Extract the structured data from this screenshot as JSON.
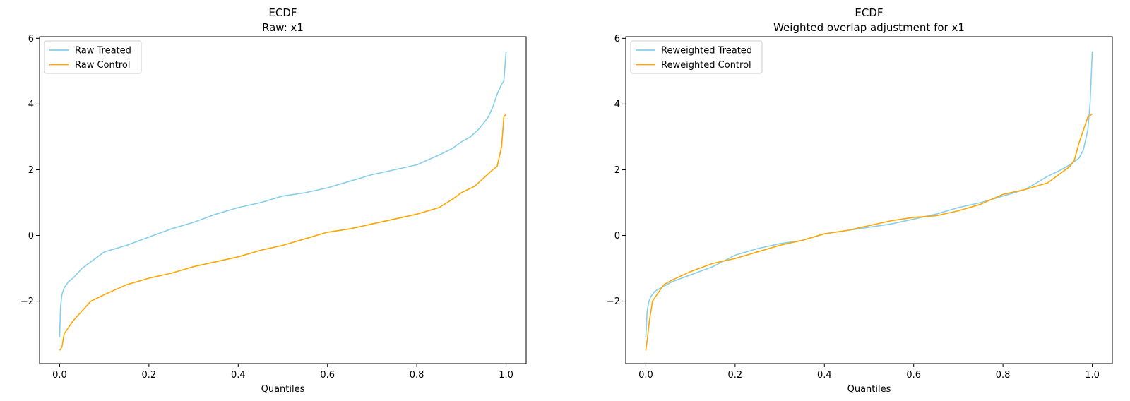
{
  "colors": {
    "treated": "#87ceeb",
    "control": "#ffa500"
  },
  "chart_data": [
    {
      "type": "line",
      "title": "ECDF",
      "subtitle": "Raw: x1",
      "xlabel": "Quantiles",
      "ylabel": "",
      "xlim": [
        -0.045,
        1.045
      ],
      "ylim": [
        -3.9,
        6.05
      ],
      "xticks": [
        0.0,
        0.2,
        0.4,
        0.6,
        0.8,
        1.0
      ],
      "xtick_labels": [
        "0.0",
        "0.2",
        "0.4",
        "0.6",
        "0.8",
        "1.0"
      ],
      "yticks": [
        -2,
        0,
        2,
        4,
        6
      ],
      "ytick_labels": [
        "−2",
        "0",
        "2",
        "4",
        "6"
      ],
      "grid": false,
      "legend_position": "top-left",
      "series": [
        {
          "name": "Raw Treated",
          "color_key": "treated",
          "x": [
            0.0,
            0.002,
            0.005,
            0.01,
            0.02,
            0.03,
            0.05,
            0.07,
            0.1,
            0.15,
            0.2,
            0.25,
            0.3,
            0.35,
            0.4,
            0.45,
            0.5,
            0.55,
            0.6,
            0.65,
            0.7,
            0.75,
            0.8,
            0.85,
            0.88,
            0.9,
            0.92,
            0.94,
            0.96,
            0.97,
            0.98,
            0.99,
            0.995,
            1.0
          ],
          "y": [
            -3.1,
            -2.2,
            -1.8,
            -1.6,
            -1.4,
            -1.3,
            -1.0,
            -0.8,
            -0.5,
            -0.3,
            -0.05,
            0.2,
            0.4,
            0.65,
            0.85,
            1.0,
            1.2,
            1.3,
            1.45,
            1.65,
            1.85,
            2.0,
            2.15,
            2.45,
            2.65,
            2.85,
            3.0,
            3.25,
            3.6,
            3.9,
            4.3,
            4.6,
            4.7,
            5.6
          ]
        },
        {
          "name": "Raw Control",
          "color_key": "control",
          "x": [
            0.0,
            0.005,
            0.01,
            0.02,
            0.03,
            0.05,
            0.07,
            0.1,
            0.15,
            0.2,
            0.25,
            0.3,
            0.35,
            0.4,
            0.45,
            0.5,
            0.55,
            0.6,
            0.65,
            0.7,
            0.75,
            0.8,
            0.85,
            0.88,
            0.9,
            0.93,
            0.95,
            0.97,
            0.98,
            0.99,
            0.995,
            1.0
          ],
          "y": [
            -3.5,
            -3.4,
            -3.0,
            -2.8,
            -2.6,
            -2.3,
            -2.0,
            -1.8,
            -1.5,
            -1.3,
            -1.15,
            -0.95,
            -0.8,
            -0.65,
            -0.45,
            -0.3,
            -0.1,
            0.1,
            0.2,
            0.35,
            0.5,
            0.65,
            0.85,
            1.1,
            1.3,
            1.5,
            1.75,
            2.0,
            2.1,
            2.7,
            3.6,
            3.7
          ]
        }
      ]
    },
    {
      "type": "line",
      "title": "ECDF",
      "subtitle": "Weighted overlap adjustment for x1",
      "xlabel": "Quantiles",
      "ylabel": "",
      "xlim": [
        -0.045,
        1.045
      ],
      "ylim": [
        -3.9,
        6.05
      ],
      "xticks": [
        0.0,
        0.2,
        0.4,
        0.6,
        0.8,
        1.0
      ],
      "xtick_labels": [
        "0.0",
        "0.2",
        "0.4",
        "0.6",
        "0.8",
        "1.0"
      ],
      "yticks": [
        -2,
        0,
        2,
        4,
        6
      ],
      "ytick_labels": [
        "−2",
        "0",
        "2",
        "4",
        "6"
      ],
      "grid": false,
      "legend_position": "top-left",
      "series": [
        {
          "name": "Reweighted Treated",
          "color_key": "treated",
          "x": [
            0.0,
            0.003,
            0.007,
            0.012,
            0.02,
            0.04,
            0.06,
            0.1,
            0.15,
            0.2,
            0.25,
            0.3,
            0.35,
            0.4,
            0.45,
            0.5,
            0.55,
            0.6,
            0.65,
            0.7,
            0.75,
            0.8,
            0.85,
            0.9,
            0.93,
            0.95,
            0.97,
            0.98,
            0.99,
            0.995,
            1.0
          ],
          "y": [
            -3.1,
            -2.3,
            -2.0,
            -1.85,
            -1.7,
            -1.55,
            -1.4,
            -1.2,
            -0.95,
            -0.6,
            -0.4,
            -0.25,
            -0.15,
            0.05,
            0.15,
            0.25,
            0.35,
            0.5,
            0.65,
            0.85,
            1.0,
            1.2,
            1.4,
            1.8,
            2.0,
            2.15,
            2.35,
            2.6,
            3.2,
            4.0,
            5.6
          ]
        },
        {
          "name": "Reweighted Control",
          "color_key": "control",
          "x": [
            0.0,
            0.003,
            0.008,
            0.015,
            0.025,
            0.04,
            0.06,
            0.1,
            0.15,
            0.2,
            0.25,
            0.3,
            0.35,
            0.4,
            0.45,
            0.5,
            0.55,
            0.6,
            0.65,
            0.7,
            0.75,
            0.8,
            0.85,
            0.9,
            0.95,
            0.96,
            0.97,
            0.98,
            0.99,
            1.0
          ],
          "y": [
            -3.5,
            -3.2,
            -2.6,
            -2.0,
            -1.8,
            -1.5,
            -1.35,
            -1.1,
            -0.85,
            -0.7,
            -0.5,
            -0.3,
            -0.15,
            0.05,
            0.15,
            0.3,
            0.45,
            0.55,
            0.6,
            0.75,
            0.95,
            1.25,
            1.4,
            1.6,
            2.1,
            2.3,
            2.8,
            3.2,
            3.6,
            3.7
          ]
        }
      ]
    }
  ]
}
